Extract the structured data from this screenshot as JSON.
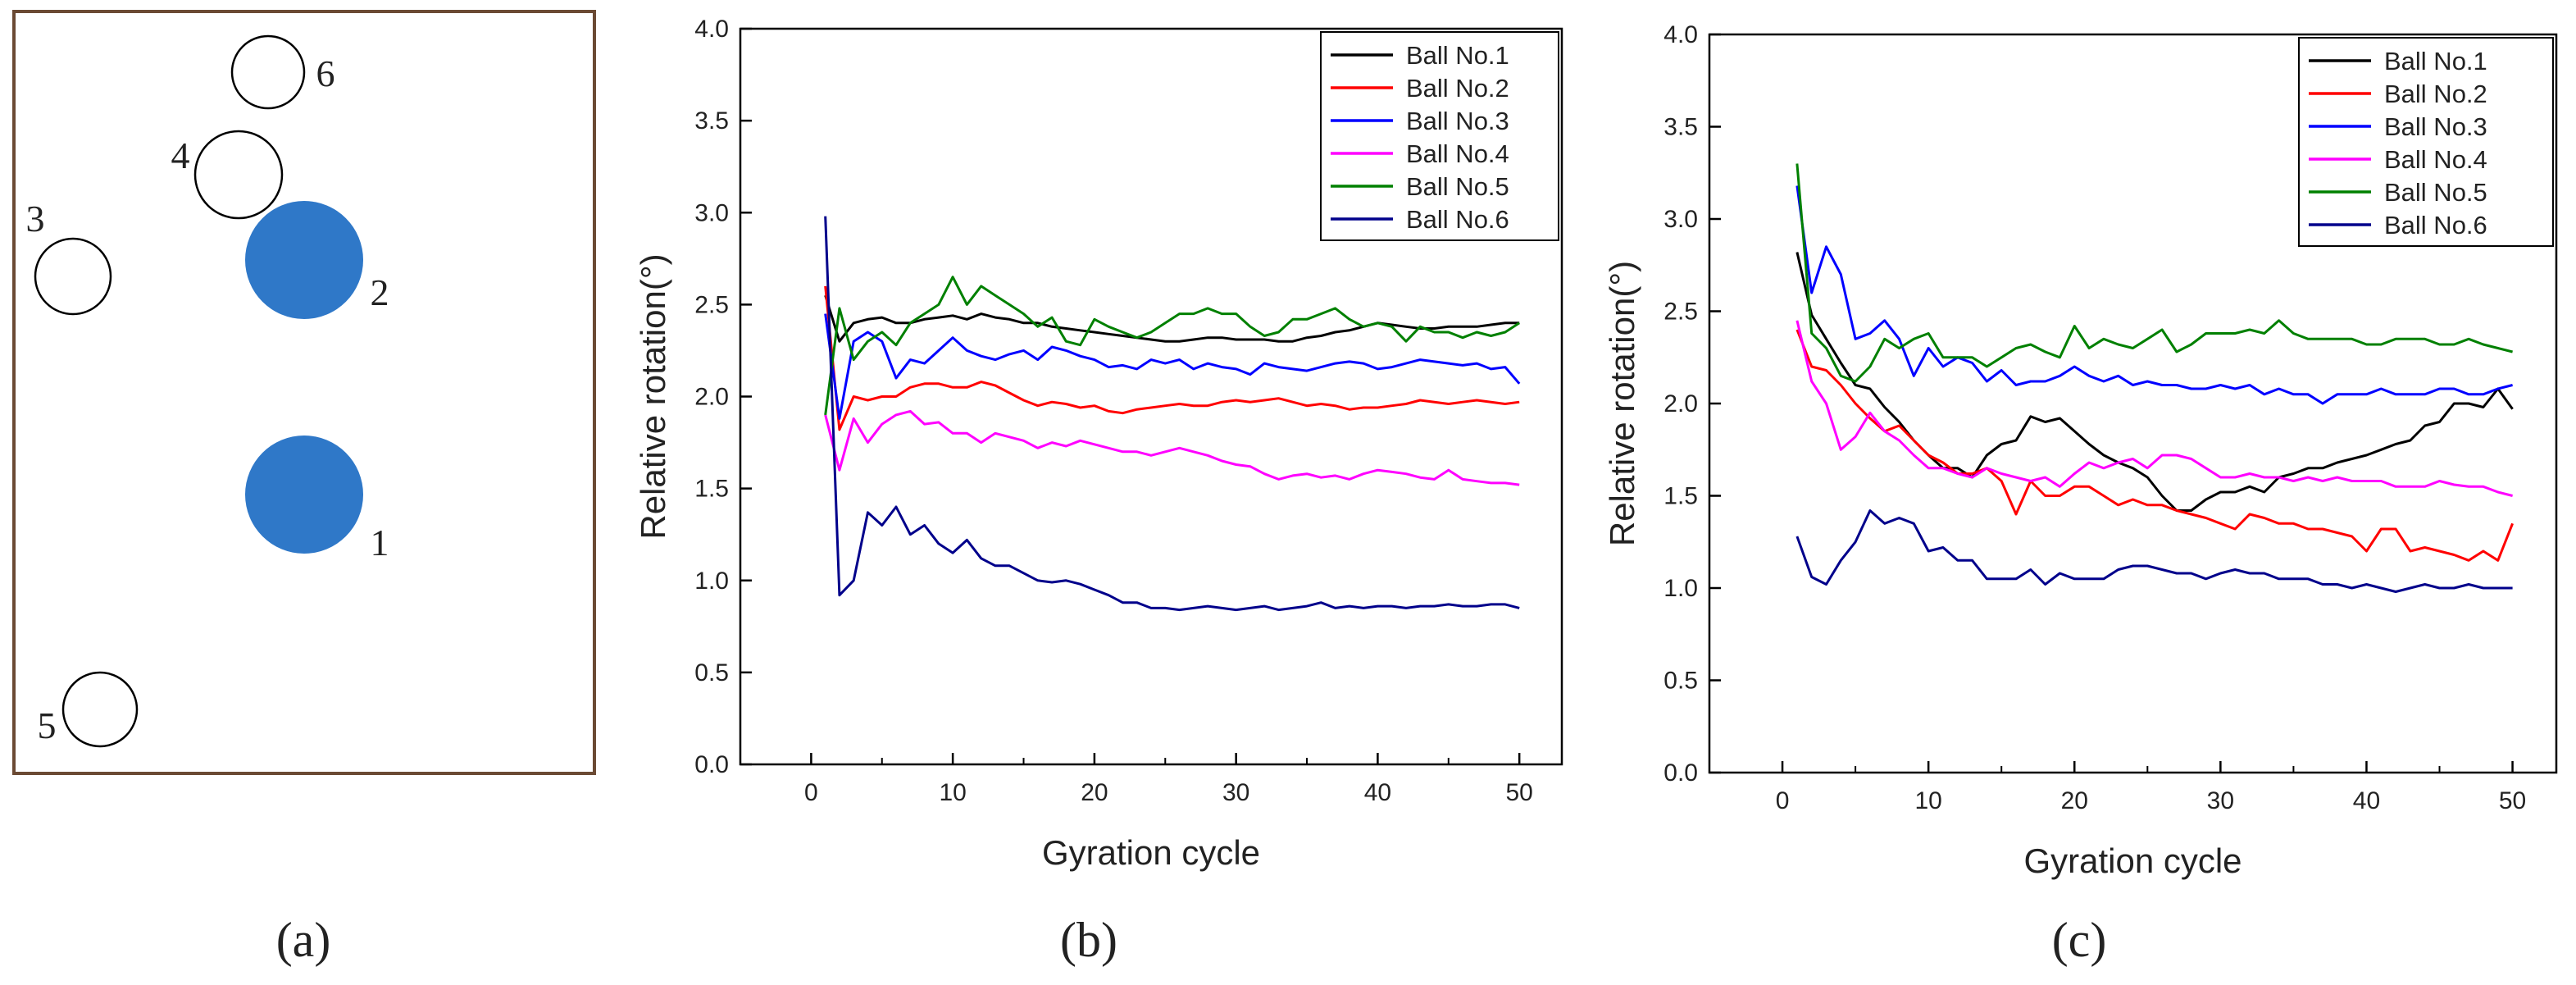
{
  "panel_a": {
    "label": "(a)",
    "frame_color": "#6b4a34",
    "filled_color": "#2f78c8",
    "balls": [
      {
        "id": "1",
        "filled": true
      },
      {
        "id": "2",
        "filled": true
      },
      {
        "id": "3",
        "filled": false
      },
      {
        "id": "4",
        "filled": false
      },
      {
        "id": "5",
        "filled": false
      },
      {
        "id": "6",
        "filled": false
      }
    ]
  },
  "chart_data": [
    {
      "type": "line",
      "panel_label": "(b)",
      "title": "",
      "xlabel": "Gyration cycle",
      "ylabel": "Relative rotation(°)",
      "xlim": [
        -5,
        53
      ],
      "ylim": [
        0,
        4
      ],
      "xticks": [
        0,
        10,
        20,
        30,
        40,
        50
      ],
      "yticks": [
        0.0,
        0.5,
        1.0,
        1.5,
        2.0,
        2.5,
        3.0,
        3.5,
        4.0
      ],
      "legend": "top-right",
      "grid": false,
      "x": [
        1,
        2,
        3,
        4,
        5,
        6,
        7,
        8,
        9,
        10,
        11,
        12,
        13,
        14,
        15,
        16,
        17,
        18,
        19,
        20,
        21,
        22,
        23,
        24,
        25,
        26,
        27,
        28,
        29,
        30,
        31,
        32,
        33,
        34,
        35,
        36,
        37,
        38,
        39,
        40,
        41,
        42,
        43,
        44,
        45,
        46,
        47,
        48,
        49,
        50
      ],
      "series": [
        {
          "name": "Ball No.1",
          "color": "#000000",
          "values": [
            2.55,
            2.3,
            2.4,
            2.42,
            2.43,
            2.4,
            2.4,
            2.42,
            2.43,
            2.44,
            2.42,
            2.45,
            2.43,
            2.42,
            2.4,
            2.4,
            2.38,
            2.37,
            2.36,
            2.35,
            2.34,
            2.33,
            2.32,
            2.31,
            2.3,
            2.3,
            2.31,
            2.32,
            2.32,
            2.31,
            2.31,
            2.31,
            2.3,
            2.3,
            2.32,
            2.33,
            2.35,
            2.36,
            2.38,
            2.4,
            2.39,
            2.38,
            2.37,
            2.37,
            2.38,
            2.38,
            2.38,
            2.39,
            2.4,
            2.4
          ]
        },
        {
          "name": "Ball No.2",
          "color": "#ff0000",
          "values": [
            2.6,
            1.82,
            2.0,
            1.98,
            2.0,
            2.0,
            2.05,
            2.07,
            2.07,
            2.05,
            2.05,
            2.08,
            2.06,
            2.02,
            1.98,
            1.95,
            1.97,
            1.96,
            1.94,
            1.95,
            1.92,
            1.91,
            1.93,
            1.94,
            1.95,
            1.96,
            1.95,
            1.95,
            1.97,
            1.98,
            1.97,
            1.98,
            1.99,
            1.97,
            1.95,
            1.96,
            1.95,
            1.93,
            1.94,
            1.94,
            1.95,
            1.96,
            1.98,
            1.97,
            1.96,
            1.97,
            1.98,
            1.97,
            1.96,
            1.97
          ]
        },
        {
          "name": "Ball No.3",
          "color": "#0000ff",
          "values": [
            2.45,
            1.88,
            2.3,
            2.35,
            2.3,
            2.1,
            2.2,
            2.18,
            2.25,
            2.32,
            2.25,
            2.22,
            2.2,
            2.23,
            2.25,
            2.2,
            2.27,
            2.25,
            2.22,
            2.2,
            2.16,
            2.17,
            2.15,
            2.2,
            2.18,
            2.2,
            2.15,
            2.18,
            2.16,
            2.15,
            2.12,
            2.18,
            2.16,
            2.15,
            2.14,
            2.16,
            2.18,
            2.19,
            2.18,
            2.15,
            2.16,
            2.18,
            2.2,
            2.19,
            2.18,
            2.17,
            2.18,
            2.15,
            2.16,
            2.07
          ]
        },
        {
          "name": "Ball No.4",
          "color": "#ff00ff",
          "values": [
            1.9,
            1.6,
            1.88,
            1.75,
            1.85,
            1.9,
            1.92,
            1.85,
            1.86,
            1.8,
            1.8,
            1.75,
            1.8,
            1.78,
            1.76,
            1.72,
            1.75,
            1.73,
            1.76,
            1.74,
            1.72,
            1.7,
            1.7,
            1.68,
            1.7,
            1.72,
            1.7,
            1.68,
            1.65,
            1.63,
            1.62,
            1.58,
            1.55,
            1.57,
            1.58,
            1.56,
            1.57,
            1.55,
            1.58,
            1.6,
            1.59,
            1.58,
            1.56,
            1.55,
            1.6,
            1.55,
            1.54,
            1.53,
            1.53,
            1.52
          ]
        },
        {
          "name": "Ball No.5",
          "color": "#008000",
          "values": [
            1.9,
            2.48,
            2.2,
            2.3,
            2.35,
            2.28,
            2.4,
            2.45,
            2.5,
            2.65,
            2.5,
            2.6,
            2.55,
            2.5,
            2.45,
            2.38,
            2.43,
            2.3,
            2.28,
            2.42,
            2.38,
            2.35,
            2.32,
            2.35,
            2.4,
            2.45,
            2.45,
            2.48,
            2.45,
            2.45,
            2.38,
            2.33,
            2.35,
            2.42,
            2.42,
            2.45,
            2.48,
            2.42,
            2.38,
            2.4,
            2.38,
            2.3,
            2.38,
            2.35,
            2.35,
            2.32,
            2.35,
            2.33,
            2.35,
            2.4
          ]
        },
        {
          "name": "Ball No.6",
          "color": "#00008b",
          "values": [
            2.98,
            0.92,
            1.0,
            1.37,
            1.3,
            1.4,
            1.25,
            1.3,
            1.2,
            1.15,
            1.22,
            1.12,
            1.08,
            1.08,
            1.04,
            1.0,
            0.99,
            1.0,
            0.98,
            0.95,
            0.92,
            0.88,
            0.88,
            0.85,
            0.85,
            0.84,
            0.85,
            0.86,
            0.85,
            0.84,
            0.85,
            0.86,
            0.84,
            0.85,
            0.86,
            0.88,
            0.85,
            0.86,
            0.85,
            0.86,
            0.86,
            0.85,
            0.86,
            0.86,
            0.87,
            0.86,
            0.86,
            0.87,
            0.87,
            0.85
          ]
        }
      ]
    },
    {
      "type": "line",
      "panel_label": "(c)",
      "title": "",
      "xlabel": "Gyration cycle",
      "ylabel": "Relative rotation(°)",
      "xlim": [
        -5,
        53
      ],
      "ylim": [
        0,
        4
      ],
      "xticks": [
        0,
        10,
        20,
        30,
        40,
        50
      ],
      "yticks": [
        0.0,
        0.5,
        1.0,
        1.5,
        2.0,
        2.5,
        3.0,
        3.5,
        4.0
      ],
      "legend": "top-right",
      "grid": false,
      "x": [
        1,
        2,
        3,
        4,
        5,
        6,
        7,
        8,
        9,
        10,
        11,
        12,
        13,
        14,
        15,
        16,
        17,
        18,
        19,
        20,
        21,
        22,
        23,
        24,
        25,
        26,
        27,
        28,
        29,
        30,
        31,
        32,
        33,
        34,
        35,
        36,
        37,
        38,
        39,
        40,
        41,
        42,
        43,
        44,
        45,
        46,
        47,
        48,
        49,
        50
      ],
      "series": [
        {
          "name": "Ball No.1",
          "color": "#000000",
          "values": [
            2.82,
            2.48,
            2.35,
            2.22,
            2.1,
            2.08,
            1.98,
            1.9,
            1.8,
            1.72,
            1.65,
            1.65,
            1.6,
            1.72,
            1.78,
            1.8,
            1.93,
            1.9,
            1.92,
            1.85,
            1.78,
            1.72,
            1.68,
            1.65,
            1.6,
            1.5,
            1.42,
            1.42,
            1.48,
            1.52,
            1.52,
            1.55,
            1.52,
            1.6,
            1.62,
            1.65,
            1.65,
            1.68,
            1.7,
            1.72,
            1.75,
            1.78,
            1.8,
            1.88,
            1.9,
            2.0,
            2.0,
            1.98,
            2.08,
            1.97
          ]
        },
        {
          "name": "Ball No.2",
          "color": "#ff0000",
          "values": [
            2.4,
            2.2,
            2.18,
            2.1,
            2.0,
            1.92,
            1.85,
            1.88,
            1.8,
            1.72,
            1.68,
            1.62,
            1.62,
            1.65,
            1.58,
            1.4,
            1.58,
            1.5,
            1.5,
            1.55,
            1.55,
            1.5,
            1.45,
            1.48,
            1.45,
            1.45,
            1.42,
            1.4,
            1.38,
            1.35,
            1.32,
            1.4,
            1.38,
            1.35,
            1.35,
            1.32,
            1.32,
            1.3,
            1.28,
            1.2,
            1.32,
            1.32,
            1.2,
            1.22,
            1.2,
            1.18,
            1.15,
            1.2,
            1.15,
            1.35
          ]
        },
        {
          "name": "Ball No.3",
          "color": "#0000ff",
          "values": [
            3.18,
            2.6,
            2.85,
            2.7,
            2.35,
            2.38,
            2.45,
            2.35,
            2.15,
            2.3,
            2.2,
            2.25,
            2.22,
            2.12,
            2.18,
            2.1,
            2.12,
            2.12,
            2.15,
            2.2,
            2.15,
            2.12,
            2.15,
            2.1,
            2.12,
            2.1,
            2.1,
            2.08,
            2.08,
            2.1,
            2.08,
            2.1,
            2.05,
            2.08,
            2.05,
            2.05,
            2.0,
            2.05,
            2.05,
            2.05,
            2.08,
            2.05,
            2.05,
            2.05,
            2.08,
            2.08,
            2.05,
            2.05,
            2.08,
            2.1
          ]
        },
        {
          "name": "Ball No.4",
          "color": "#ff00ff",
          "values": [
            2.45,
            2.12,
            2.0,
            1.75,
            1.82,
            1.95,
            1.85,
            1.8,
            1.72,
            1.65,
            1.65,
            1.62,
            1.6,
            1.65,
            1.62,
            1.6,
            1.58,
            1.6,
            1.55,
            1.62,
            1.68,
            1.65,
            1.68,
            1.7,
            1.65,
            1.72,
            1.72,
            1.7,
            1.65,
            1.6,
            1.6,
            1.62,
            1.6,
            1.6,
            1.58,
            1.6,
            1.58,
            1.6,
            1.58,
            1.58,
            1.58,
            1.55,
            1.55,
            1.55,
            1.58,
            1.56,
            1.55,
            1.55,
            1.52,
            1.5
          ]
        },
        {
          "name": "Ball No.5",
          "color": "#008000",
          "values": [
            3.3,
            2.38,
            2.3,
            2.15,
            2.12,
            2.2,
            2.35,
            2.3,
            2.35,
            2.38,
            2.25,
            2.25,
            2.25,
            2.2,
            2.25,
            2.3,
            2.32,
            2.28,
            2.25,
            2.42,
            2.3,
            2.35,
            2.32,
            2.3,
            2.35,
            2.4,
            2.28,
            2.32,
            2.38,
            2.38,
            2.38,
            2.4,
            2.38,
            2.45,
            2.38,
            2.35,
            2.35,
            2.35,
            2.35,
            2.32,
            2.32,
            2.35,
            2.35,
            2.35,
            2.32,
            2.32,
            2.35,
            2.32,
            2.3,
            2.28
          ]
        },
        {
          "name": "Ball No.6",
          "color": "#00008b",
          "values": [
            1.28,
            1.06,
            1.02,
            1.15,
            1.25,
            1.42,
            1.35,
            1.38,
            1.35,
            1.2,
            1.22,
            1.15,
            1.15,
            1.05,
            1.05,
            1.05,
            1.1,
            1.02,
            1.08,
            1.05,
            1.05,
            1.05,
            1.1,
            1.12,
            1.12,
            1.1,
            1.08,
            1.08,
            1.05,
            1.08,
            1.1,
            1.08,
            1.08,
            1.05,
            1.05,
            1.05,
            1.02,
            1.02,
            1.0,
            1.02,
            1.0,
            0.98,
            1.0,
            1.02,
            1.0,
            1.0,
            1.02,
            1.0,
            1.0,
            1.0
          ]
        }
      ]
    }
  ]
}
